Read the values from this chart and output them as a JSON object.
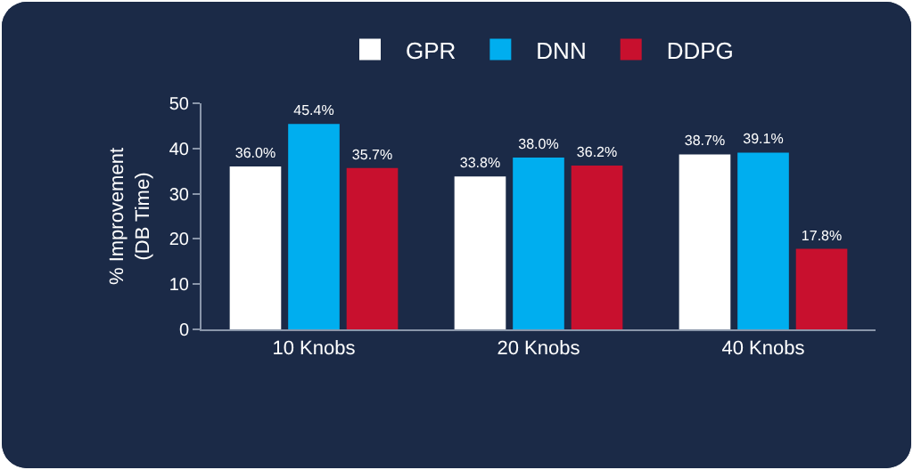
{
  "chart_data": {
    "type": "bar",
    "ylabel": "% Improvement\n(DB Time)",
    "categories": [
      "10 Knobs",
      "20 Knobs",
      "40 Knobs"
    ],
    "series": [
      {
        "name": "GPR",
        "color": "#ffffff",
        "values": [
          36.0,
          33.8,
          38.7
        ],
        "value_labels": [
          "36.0%",
          "33.8%",
          "38.7%"
        ]
      },
      {
        "name": "DNN",
        "color": "#00aeef",
        "values": [
          45.4,
          38.0,
          39.1
        ],
        "value_labels": [
          "45.4%",
          "38.0%",
          "39.1%"
        ]
      },
      {
        "name": "DDPG",
        "color": "#c8102e",
        "values": [
          35.7,
          36.2,
          17.8
        ],
        "value_labels": [
          "35.7%",
          "36.2%",
          "17.8%"
        ]
      }
    ],
    "ylim": [
      0,
      50
    ],
    "yticks": [
      0,
      10,
      20,
      30,
      40,
      50
    ],
    "legend": "top"
  }
}
